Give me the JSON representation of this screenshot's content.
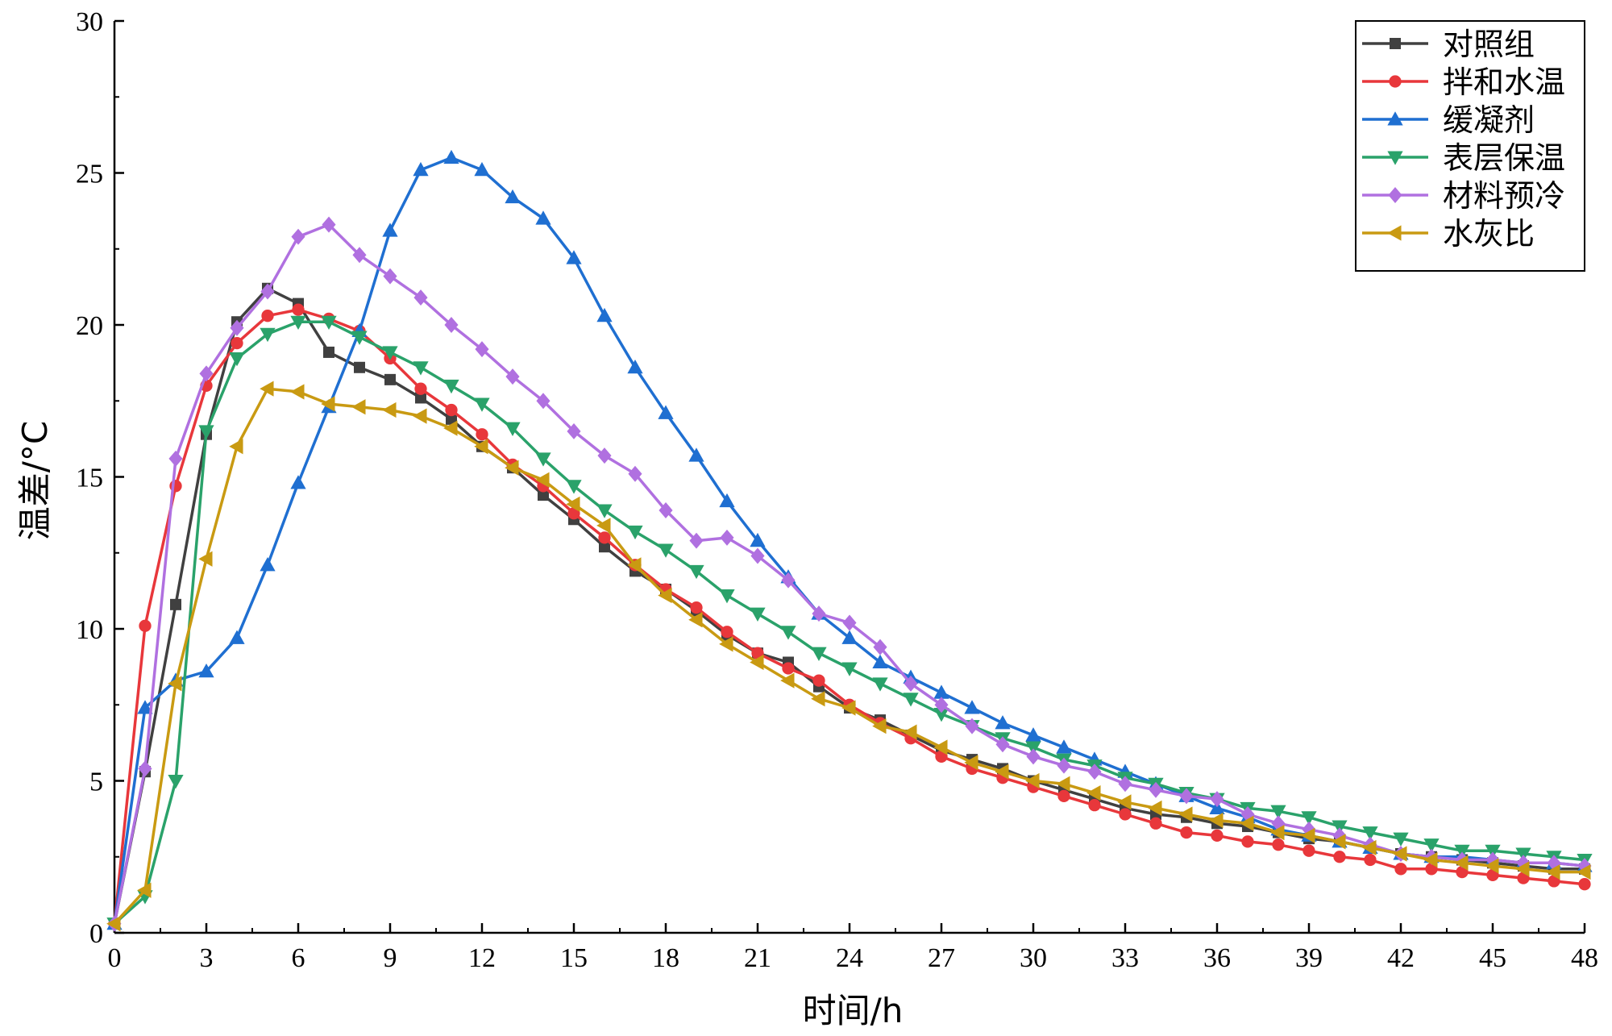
{
  "chart_data": {
    "type": "line",
    "xlabel": "时间/h",
    "ylabel": "温差/°C",
    "xlim": [
      0,
      48
    ],
    "ylim": [
      0,
      30
    ],
    "xticks": [
      0,
      3,
      6,
      9,
      12,
      15,
      18,
      21,
      24,
      27,
      30,
      33,
      36,
      39,
      42,
      45,
      48
    ],
    "yticks": [
      0,
      5,
      10,
      15,
      20,
      25,
      30
    ],
    "grid": false,
    "legend_position": "top-right",
    "series": [
      {
        "name": "对照组",
        "color": "#404040",
        "marker": "square",
        "x": [
          0,
          1,
          2,
          3,
          4,
          5,
          6,
          7,
          8,
          9,
          10,
          11,
          12,
          13,
          14,
          15,
          16,
          17,
          18,
          19,
          20,
          21,
          22,
          23,
          24,
          25,
          26,
          27,
          28,
          29,
          30,
          31,
          32,
          33,
          34,
          35,
          36,
          37,
          38,
          39,
          40,
          41,
          42,
          43,
          44,
          45,
          46,
          47,
          48
        ],
        "y": [
          0.3,
          5.3,
          10.8,
          16.4,
          20.1,
          21.2,
          20.7,
          19.1,
          18.6,
          18.2,
          17.6,
          16.9,
          16.0,
          15.3,
          14.4,
          13.6,
          12.7,
          11.9,
          11.3,
          10.6,
          9.8,
          9.2,
          8.9,
          8.1,
          7.4,
          7.0,
          6.5,
          6.0,
          5.7,
          5.4,
          5.0,
          4.7,
          4.4,
          4.1,
          3.9,
          3.8,
          3.6,
          3.5,
          3.3,
          3.1,
          3.0,
          2.8,
          2.6,
          2.5,
          2.4,
          2.3,
          2.2,
          2.1,
          2.1
        ]
      },
      {
        "name": "拌和水温",
        "color": "#e8373b",
        "marker": "circle",
        "x": [
          0,
          1,
          2,
          3,
          4,
          5,
          6,
          7,
          8,
          9,
          10,
          11,
          12,
          13,
          14,
          15,
          16,
          17,
          18,
          19,
          20,
          21,
          22,
          23,
          24,
          25,
          26,
          27,
          28,
          29,
          30,
          31,
          32,
          33,
          34,
          35,
          36,
          37,
          38,
          39,
          40,
          41,
          42,
          43,
          44,
          45,
          46,
          47,
          48
        ],
        "y": [
          0.3,
          10.1,
          14.7,
          18.0,
          19.4,
          20.3,
          20.5,
          20.2,
          19.8,
          18.9,
          17.9,
          17.2,
          16.4,
          15.4,
          14.7,
          13.8,
          13.0,
          12.1,
          11.3,
          10.7,
          9.9,
          9.2,
          8.7,
          8.3,
          7.5,
          6.9,
          6.4,
          5.8,
          5.4,
          5.1,
          4.8,
          4.5,
          4.2,
          3.9,
          3.6,
          3.3,
          3.2,
          3.0,
          2.9,
          2.7,
          2.5,
          2.4,
          2.1,
          2.1,
          2.0,
          1.9,
          1.8,
          1.7,
          1.6
        ]
      },
      {
        "name": "缓凝剂",
        "color": "#1f6fd1",
        "marker": "triangle-up",
        "x": [
          0,
          1,
          2,
          3,
          4,
          5,
          6,
          7,
          8,
          9,
          10,
          11,
          12,
          13,
          14,
          15,
          16,
          17,
          18,
          19,
          20,
          21,
          22,
          23,
          24,
          25,
          26,
          27,
          28,
          29,
          30,
          31,
          32,
          33,
          34,
          35,
          36,
          37,
          38,
          39,
          40,
          41,
          42,
          43,
          44,
          45,
          46,
          47,
          48
        ],
        "y": [
          0.3,
          7.4,
          8.3,
          8.6,
          9.7,
          12.1,
          14.8,
          17.3,
          19.8,
          23.1,
          25.1,
          25.5,
          25.1,
          24.2,
          23.5,
          22.2,
          20.3,
          18.6,
          17.1,
          15.7,
          14.2,
          12.9,
          11.7,
          10.5,
          9.7,
          8.9,
          8.4,
          7.9,
          7.4,
          6.9,
          6.5,
          6.1,
          5.7,
          5.3,
          4.9,
          4.5,
          4.1,
          3.8,
          3.4,
          3.2,
          3.0,
          2.8,
          2.6,
          2.5,
          2.5,
          2.4,
          2.3,
          2.3,
          2.2
        ]
      },
      {
        "name": "表层保温",
        "color": "#2aa26a",
        "marker": "triangle-down",
        "x": [
          0,
          1,
          2,
          3,
          4,
          5,
          6,
          7,
          8,
          9,
          10,
          11,
          12,
          13,
          14,
          15,
          16,
          17,
          18,
          19,
          20,
          21,
          22,
          23,
          24,
          25,
          26,
          27,
          28,
          29,
          30,
          31,
          32,
          33,
          34,
          35,
          36,
          37,
          38,
          39,
          40,
          41,
          42,
          43,
          44,
          45,
          46,
          47,
          48
        ],
        "y": [
          0.3,
          1.2,
          5.0,
          16.5,
          18.9,
          19.7,
          20.1,
          20.1,
          19.6,
          19.1,
          18.6,
          18.0,
          17.4,
          16.6,
          15.6,
          14.7,
          13.9,
          13.2,
          12.6,
          11.9,
          11.1,
          10.5,
          9.9,
          9.2,
          8.7,
          8.2,
          7.7,
          7.2,
          6.8,
          6.4,
          6.1,
          5.7,
          5.5,
          5.1,
          4.9,
          4.6,
          4.4,
          4.1,
          4.0,
          3.8,
          3.5,
          3.3,
          3.1,
          2.9,
          2.7,
          2.7,
          2.6,
          2.5,
          2.4
        ]
      },
      {
        "name": "材料预冷",
        "color": "#b070e0",
        "marker": "diamond",
        "x": [
          0,
          1,
          2,
          3,
          4,
          5,
          6,
          7,
          8,
          9,
          10,
          11,
          12,
          13,
          14,
          15,
          16,
          17,
          18,
          19,
          20,
          21,
          22,
          23,
          24,
          25,
          26,
          27,
          28,
          29,
          30,
          31,
          32,
          33,
          34,
          35,
          36,
          37,
          38,
          39,
          40,
          41,
          42,
          43,
          44,
          45,
          46,
          47,
          48
        ],
        "y": [
          0.3,
          5.4,
          15.6,
          18.4,
          19.9,
          21.1,
          22.9,
          23.3,
          22.3,
          21.6,
          20.9,
          20.0,
          19.2,
          18.3,
          17.5,
          16.5,
          15.7,
          15.1,
          13.9,
          12.9,
          13.0,
          12.4,
          11.6,
          10.5,
          10.2,
          9.4,
          8.2,
          7.5,
          6.8,
          6.2,
          5.8,
          5.5,
          5.3,
          4.9,
          4.7,
          4.5,
          4.4,
          3.9,
          3.6,
          3.4,
          3.2,
          2.9,
          2.6,
          2.5,
          2.4,
          2.4,
          2.3,
          2.3,
          2.2
        ]
      },
      {
        "name": "水灰比",
        "color": "#c99a12",
        "marker": "triangle-left",
        "x": [
          0,
          1,
          2,
          3,
          4,
          5,
          6,
          7,
          8,
          9,
          10,
          11,
          12,
          13,
          14,
          15,
          16,
          17,
          18,
          19,
          20,
          21,
          22,
          23,
          24,
          25,
          26,
          27,
          28,
          29,
          30,
          31,
          32,
          33,
          34,
          35,
          36,
          37,
          38,
          39,
          40,
          41,
          42,
          43,
          44,
          45,
          46,
          47,
          48
        ],
        "y": [
          0.3,
          1.4,
          8.2,
          12.3,
          16.0,
          17.9,
          17.8,
          17.4,
          17.3,
          17.2,
          17.0,
          16.6,
          16.0,
          15.3,
          14.9,
          14.1,
          13.4,
          12.1,
          11.1,
          10.3,
          9.5,
          8.9,
          8.3,
          7.7,
          7.4,
          6.8,
          6.6,
          6.1,
          5.6,
          5.3,
          5.0,
          4.9,
          4.6,
          4.3,
          4.1,
          3.9,
          3.7,
          3.6,
          3.3,
          3.2,
          3.0,
          2.8,
          2.6,
          2.4,
          2.3,
          2.2,
          2.1,
          2.0,
          2.0
        ]
      }
    ]
  }
}
